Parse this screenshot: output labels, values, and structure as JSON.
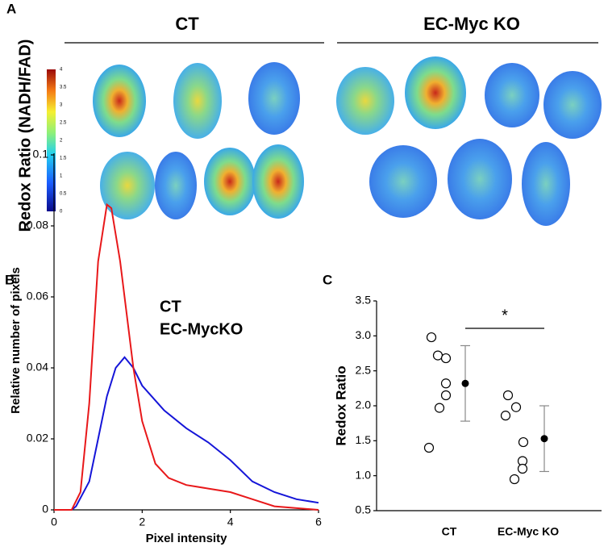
{
  "panel_a": {
    "label": "A",
    "groups": [
      "CT",
      "EC-Myc KO"
    ],
    "colorbar_label": "Redox Ratio (NADH/FAD)",
    "colorbar_ticks": [
      0,
      0.5,
      1,
      1.5,
      2,
      2.5,
      3,
      3.5,
      4
    ]
  },
  "chart_data": [
    {
      "type": "line",
      "panel": "B",
      "xlabel": "Pixel intensity",
      "ylabel": "Relative number of pixels",
      "xlim": [
        0,
        6
      ],
      "ylim": [
        0,
        0.1
      ],
      "xticks": [
        0,
        2,
        4,
        6
      ],
      "yticks": [
        0,
        0.02,
        0.04,
        0.06,
        0.08,
        0.1
      ],
      "series": [
        {
          "name": "CT",
          "color": "#1515d8",
          "x": [
            0,
            0.4,
            0.5,
            0.8,
            1.0,
            1.2,
            1.4,
            1.6,
            1.8,
            2.0,
            2.5,
            3.0,
            3.5,
            4.0,
            4.5,
            5.0,
            5.5,
            6.0
          ],
          "values": [
            0,
            0,
            0.001,
            0.008,
            0.02,
            0.032,
            0.04,
            0.043,
            0.04,
            0.035,
            0.028,
            0.023,
            0.019,
            0.014,
            0.008,
            0.005,
            0.003,
            0.002
          ]
        },
        {
          "name": "EC-MycKO",
          "color": "#e8181a",
          "x": [
            0,
            0.4,
            0.6,
            0.8,
            1.0,
            1.2,
            1.3,
            1.5,
            1.8,
            2.0,
            2.3,
            2.6,
            3.0,
            3.5,
            4.0,
            4.5,
            5.0,
            6.0
          ],
          "values": [
            0,
            0,
            0.005,
            0.03,
            0.07,
            0.086,
            0.085,
            0.07,
            0.04,
            0.025,
            0.013,
            0.009,
            0.007,
            0.006,
            0.005,
            0.003,
            0.001,
            0
          ]
        }
      ]
    },
    {
      "type": "scatter",
      "panel": "C",
      "ylabel": "Redox Ratio",
      "categories": [
        "CT",
        "EC-Myc KO"
      ],
      "ylim": [
        0.5,
        3.5
      ],
      "yticks": [
        0.5,
        {
          "value": 1,
          "label": "1.0"
        },
        1.5,
        {
          "value": 2,
          "label": "2.0"
        },
        2.5,
        {
          "value": 3,
          "label": "3.0"
        },
        3.5
      ],
      "groups": [
        {
          "values": [
            2.98,
            2.72,
            2.68,
            2.32,
            2.15,
            1.97,
            1.4
          ],
          "mean": 2.32,
          "error": 0.54
        },
        {
          "values": [
            2.15,
            1.98,
            1.86,
            1.48,
            1.21,
            1.1,
            0.95
          ],
          "mean": 1.53,
          "error": 0.47
        }
      ],
      "annotation": "*"
    }
  ]
}
